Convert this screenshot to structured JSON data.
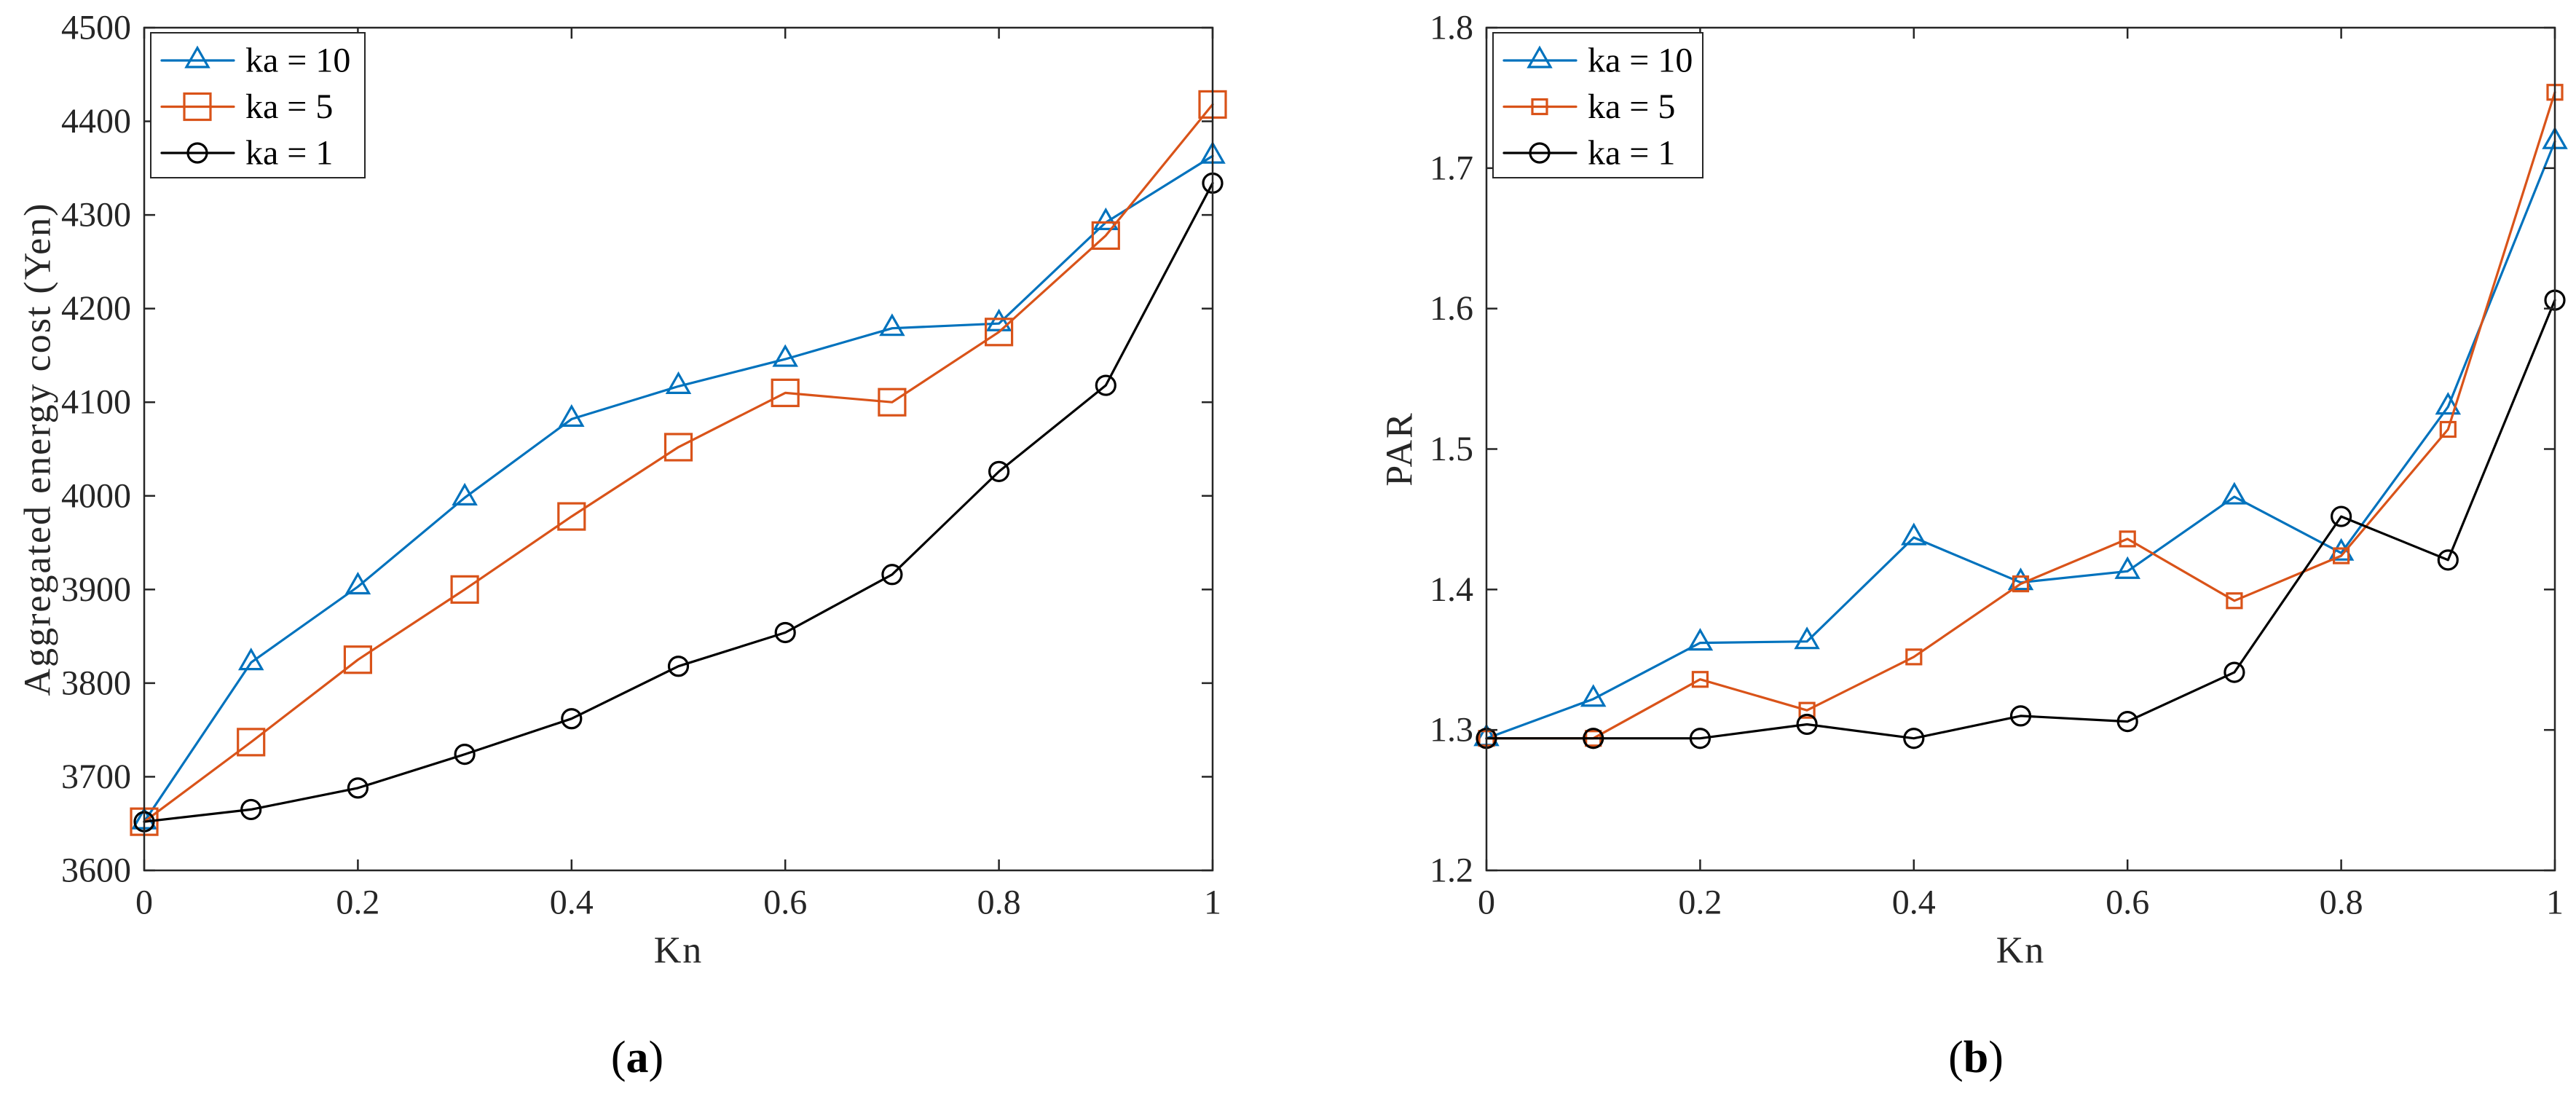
{
  "chart_data": [
    {
      "type": "line",
      "panel_label": "(a)",
      "xlabel": "Kn",
      "ylabel": "Aggregated energy cost (Yen)",
      "xlim": [
        0,
        1
      ],
      "ylim": [
        3600,
        4500
      ],
      "xticks": [
        0,
        0.2,
        0.4,
        0.6,
        0.8,
        1
      ],
      "xtick_labels": [
        "0",
        "0.2",
        "0.4",
        "0.6",
        "0.8",
        "1"
      ],
      "yticks": [
        3600,
        3700,
        3800,
        3900,
        4000,
        4100,
        4200,
        4300,
        4400,
        4500
      ],
      "ytick_labels": [
        "3600",
        "3700",
        "3800",
        "3900",
        "4000",
        "4100",
        "4200",
        "4300",
        "4400",
        "4500"
      ],
      "grid": false,
      "legend_position": "top-left",
      "x": [
        0,
        0.1,
        0.2,
        0.3,
        0.4,
        0.5,
        0.6,
        0.7,
        0.8,
        0.9,
        1
      ],
      "series": [
        {
          "name": "ka = 10",
          "color": "#0072BD",
          "marker": "triangle",
          "values": [
            3652,
            3822,
            3903,
            3998,
            4082,
            4117,
            4146,
            4179,
            4184,
            4292,
            4363
          ]
        },
        {
          "name": "ka = 5",
          "color": "#D95319",
          "marker": "square",
          "values": [
            3652,
            3737,
            3825,
            3900,
            3978,
            4052,
            4110,
            4100,
            4175,
            4278,
            4418
          ]
        },
        {
          "name": "ka = 1",
          "color": "#000000",
          "marker": "circle",
          "values": [
            3652,
            3665,
            3688,
            3724,
            3762,
            3818,
            3854,
            3916,
            4026,
            4118,
            4334
          ]
        }
      ]
    },
    {
      "type": "line",
      "panel_label": "(b)",
      "xlabel": "Kn",
      "ylabel": "PAR",
      "xlim": [
        0,
        1
      ],
      "ylim": [
        1.2,
        1.8
      ],
      "xticks": [
        0,
        0.2,
        0.4,
        0.6,
        0.8,
        1
      ],
      "xtick_labels": [
        "0",
        "0.2",
        "0.4",
        "0.6",
        "0.8",
        "1"
      ],
      "yticks": [
        1.2,
        1.3,
        1.4,
        1.5,
        1.6,
        1.7,
        1.8
      ],
      "ytick_labels": [
        "1.2",
        "1.3",
        "1.4",
        "1.5",
        "1.6",
        "1.7",
        "1.8"
      ],
      "grid": false,
      "legend_position": "top-left",
      "x": [
        0,
        0.1,
        0.2,
        0.3,
        0.4,
        0.5,
        0.6,
        0.7,
        0.8,
        0.9,
        1
      ],
      "series": [
        {
          "name": "ka = 10",
          "color": "#0072BD",
          "marker": "triangle",
          "values": [
            1.294,
            1.322,
            1.362,
            1.363,
            1.437,
            1.405,
            1.413,
            1.466,
            1.426,
            1.53,
            1.719
          ]
        },
        {
          "name": "ka = 5",
          "color": "#D95319",
          "marker": "square",
          "values": [
            1.294,
            1.294,
            1.336,
            1.314,
            1.352,
            1.404,
            1.436,
            1.392,
            1.424,
            1.514,
            1.754
          ]
        },
        {
          "name": "ka = 1",
          "color": "#000000",
          "marker": "circle",
          "values": [
            1.294,
            1.294,
            1.294,
            1.304,
            1.294,
            1.31,
            1.306,
            1.341,
            1.452,
            1.421,
            1.606
          ]
        }
      ]
    }
  ]
}
